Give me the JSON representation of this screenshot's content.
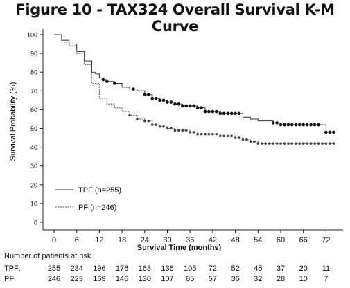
{
  "chart_data": {
    "type": "line",
    "title": "Figure 10 - TAX324 Overall Survival K-M Curve",
    "xlabel": "Survival Time (months)",
    "ylabel": "Survival Probability (%)",
    "xlim": [
      0,
      75
    ],
    "ylim": [
      0,
      100
    ],
    "x_ticks": [
      0,
      6,
      12,
      18,
      24,
      30,
      36,
      42,
      48,
      54,
      60,
      66,
      72
    ],
    "y_ticks": [
      0,
      10,
      20,
      30,
      40,
      50,
      60,
      70,
      80,
      90,
      100
    ],
    "grid": false,
    "legend_position": "bottom-left",
    "series": [
      {
        "name": "TPF (n=255)",
        "line_style": "solid",
        "color": "#333333",
        "x": [
          0,
          2,
          4,
          6,
          8,
          10,
          11,
          12,
          13,
          14,
          16,
          18,
          20,
          22,
          24,
          26,
          28,
          30,
          32,
          34,
          36,
          38,
          40,
          42,
          44,
          46,
          48,
          50,
          52,
          54,
          56,
          58,
          60,
          62,
          64,
          66,
          68,
          70,
          72,
          74
        ],
        "y": [
          100,
          97,
          95,
          91,
          86,
          80,
          79,
          77,
          76,
          75,
          74,
          72,
          71,
          70,
          68,
          66,
          65,
          64,
          63,
          62,
          62,
          61,
          59,
          59,
          58,
          58,
          58,
          56,
          55,
          54,
          54,
          53,
          52,
          52,
          52,
          52,
          52,
          52,
          48,
          48
        ],
        "censor_x": [
          13,
          14,
          16,
          21,
          24,
          25,
          26,
          27,
          28,
          29,
          30,
          31,
          32,
          33,
          34,
          35,
          36,
          37,
          38,
          39,
          40,
          41,
          42,
          43,
          44,
          45,
          46,
          47,
          48,
          49,
          58,
          59,
          60,
          61,
          62,
          63,
          64,
          65,
          66,
          67,
          68,
          69,
          70,
          72,
          73,
          74
        ]
      },
      {
        "name": "PF (n=246)",
        "line_style": "dashed",
        "color": "#555555",
        "x": [
          0,
          2,
          4,
          6,
          8,
          10,
          12,
          14,
          16,
          18,
          20,
          22,
          24,
          26,
          28,
          30,
          32,
          34,
          36,
          38,
          40,
          42,
          44,
          46,
          48,
          50,
          52,
          54,
          56,
          58,
          60,
          62,
          64,
          66,
          68,
          70,
          72,
          74
        ],
        "y": [
          100,
          96,
          94,
          90,
          84,
          74,
          66,
          63,
          61,
          59,
          57,
          55,
          54,
          52,
          51,
          50,
          49,
          49,
          48,
          47,
          47,
          47,
          46,
          46,
          45,
          44,
          43,
          42,
          42,
          42,
          42,
          42,
          42,
          42,
          42,
          42,
          42,
          42
        ],
        "censor_x": [
          20,
          22,
          24,
          25,
          26,
          27,
          28,
          29,
          30,
          31,
          32,
          33,
          34,
          35,
          36,
          37,
          38,
          39,
          40,
          41,
          42,
          43,
          44,
          45,
          46,
          47,
          48,
          49,
          50,
          51,
          52,
          53,
          54,
          55,
          56,
          57,
          58,
          59,
          60,
          61,
          62,
          63,
          64,
          65,
          66,
          67,
          68,
          69,
          70,
          71,
          72,
          73,
          74
        ]
      }
    ]
  },
  "risk_table": {
    "heading": "Number of patients at risk",
    "rows": [
      {
        "label": "TPF:",
        "values": [
          255,
          234,
          196,
          176,
          163,
          136,
          105,
          72,
          52,
          45,
          37,
          20,
          11
        ]
      },
      {
        "label": "PF:",
        "values": [
          246,
          223,
          169,
          146,
          130,
          107,
          85,
          57,
          36,
          32,
          28,
          10,
          7
        ]
      }
    ]
  }
}
